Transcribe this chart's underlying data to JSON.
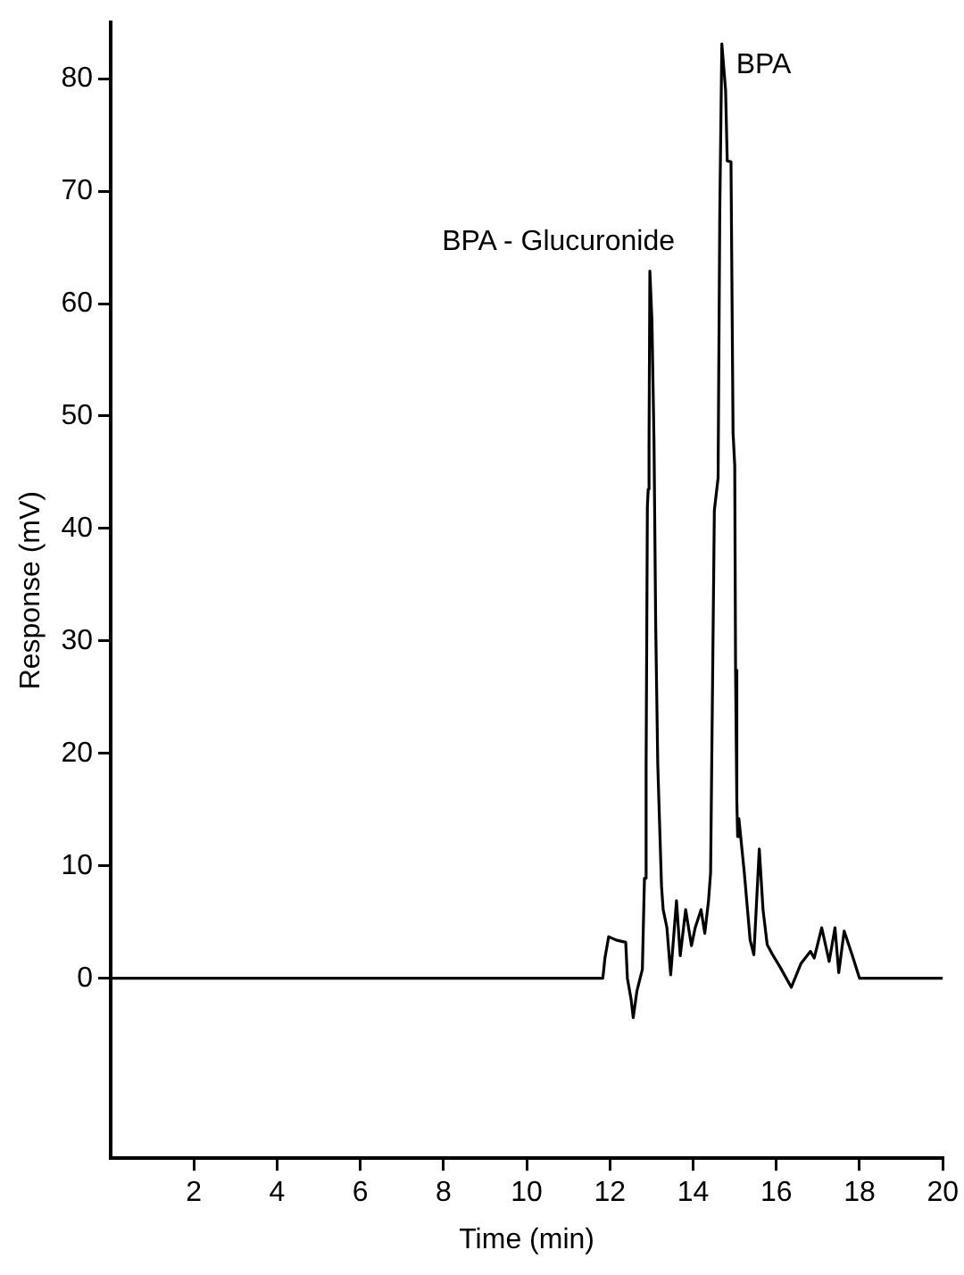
{
  "chart_data": {
    "type": "line",
    "xlabel": "Time (min)",
    "ylabel": "Response (mV)",
    "xlim": [
      0,
      20
    ],
    "xticks": [
      2,
      4,
      6,
      8,
      10,
      12,
      14,
      16,
      18,
      20
    ],
    "ylim": [
      -16,
      85
    ],
    "yticks": [
      0,
      10,
      20,
      30,
      40,
      50,
      60,
      70,
      80
    ],
    "grid": false,
    "legend": false,
    "marker": "none",
    "line_style": "solid",
    "annotations": [
      {
        "text": "BPA - Glucuronide",
        "x": 12.96,
        "y": 62.9
      },
      {
        "text": "BPA",
        "x": 14.69,
        "y": 83.1
      }
    ],
    "series": [
      {
        "color": "#000000",
        "x": [
          0,
          11.83,
          11.88,
          11.97,
          12.15,
          12.38,
          12.42,
          12.51,
          12.56,
          12.65,
          12.78,
          12.83,
          12.87,
          12.9,
          12.92,
          12.94,
          12.96,
          13.01,
          13.06,
          13.1,
          13.15,
          13.24,
          13.28,
          13.37,
          13.46,
          13.6,
          13.69,
          13.82,
          13.96,
          14.05,
          14.19,
          14.28,
          14.37,
          14.42,
          14.51,
          14.6,
          14.64,
          14.69,
          14.78,
          14.82,
          14.91,
          14.96,
          15.0,
          15.02,
          15.05,
          15.07,
          15.1,
          15.23,
          15.37,
          15.46,
          15.59,
          15.68,
          15.78,
          15.91,
          16.09,
          16.36,
          16.59,
          16.82,
          16.91,
          17.09,
          17.27,
          17.41,
          17.5,
          17.63,
          17.82,
          18.0,
          20
        ],
        "values": [
          0,
          0,
          1.8,
          3.7,
          3.4,
          3.2,
          0,
          -1.9,
          -3.5,
          -1.1,
          0.8,
          8.9,
          19,
          41.9,
          43.5,
          47.6,
          62.9,
          58.5,
          47.6,
          31.5,
          19,
          8.2,
          6.1,
          4.5,
          0.3,
          6.9,
          2,
          6.1,
          2.9,
          4.5,
          6.1,
          4,
          6.9,
          9.4,
          41.6,
          44.5,
          67.9,
          83.1,
          79,
          72.7,
          72.6,
          48.5,
          45.6,
          27.4,
          15.8,
          12.6,
          14.2,
          9.4,
          3.4,
          2.1,
          11.5,
          6.1,
          3,
          2.1,
          1,
          -0.8,
          1.3,
          2.4,
          1.8,
          4.5,
          1.5,
          4.5,
          0.5,
          4.2,
          2.1,
          0,
          0
        ]
      }
    ]
  }
}
